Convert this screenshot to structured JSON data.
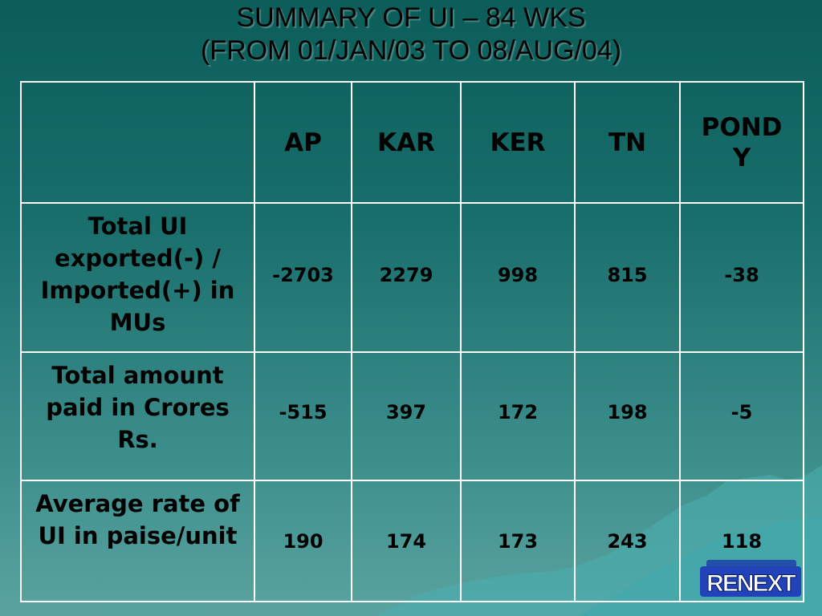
{
  "slide": {
    "title_line1": "SUMMARY OF UI – 84 WKS",
    "title_line2": "(FROM 01/JAN/03 TO 08/AUG/04)"
  },
  "table": {
    "columns": [
      "",
      "AP",
      "KAR",
      "KER",
      "TN",
      "POND\nY"
    ],
    "rows": [
      {
        "label": "Total UI exported(-) / Imported(+) in MUs",
        "values": [
          "-2703",
          "2279",
          "998",
          "815",
          "-38"
        ]
      },
      {
        "label": "Total amount paid in Crores Rs.",
        "values": [
          "-515",
          "397",
          "172",
          "198",
          "-5"
        ]
      },
      {
        "label": "Average rate of UI in paise/unit",
        "values": [
          "190",
          "174",
          "173",
          "243",
          "118"
        ]
      }
    ]
  },
  "logo": {
    "text": "RENEXT",
    "icon": "renext-logo-icon"
  },
  "colors": {
    "background_top": "#0b5d59",
    "background_bottom": "#5aa3a0",
    "grid": "#ffffff"
  }
}
